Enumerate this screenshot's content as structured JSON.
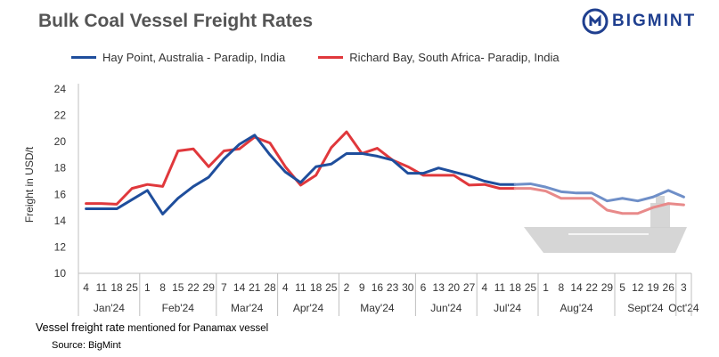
{
  "header": {
    "title": "Bulk Coal Vessel Freight Rates",
    "logo_text": "BIGMINT"
  },
  "footer": {
    "note_main": "Vessel freight rate",
    "note_small": " mentioned for Panamax vessel",
    "source": "Source: BigMint"
  },
  "colors": {
    "hay_point": "#1f4e9c",
    "richard_bay": "#e0383c",
    "hay_point_faded": "#6f8fc8",
    "richard_bay_faded": "#e88a8a",
    "ship": "#cfcfcf"
  },
  "icons": [
    "bigmint-logo-icon",
    "cargo-ship-watermark"
  ],
  "chart_data": {
    "type": "line",
    "title": "Bulk Coal Vessel Freight Rates",
    "ylabel": "Freight  in USD/t",
    "xlabel": "",
    "ylim": [
      10,
      24
    ],
    "yticks": [
      10,
      12,
      14,
      16,
      18,
      20,
      22,
      24
    ],
    "grid": false,
    "legend_position": "top",
    "x": [
      "4",
      "11",
      "18",
      "25",
      "1",
      "8",
      "15",
      "22",
      "29",
      "7",
      "14",
      "21",
      "28",
      "4",
      "11",
      "18",
      "25",
      "2",
      "9",
      "16",
      "23",
      "30",
      "6",
      "13",
      "20",
      "27",
      "4",
      "11",
      "18",
      "25",
      "1",
      "8",
      "14",
      "22",
      "29",
      "5",
      "12",
      "19",
      "26",
      "3"
    ],
    "month_groups": [
      {
        "label": "Jan'24",
        "count": 4
      },
      {
        "label": "Feb'24",
        "count": 5
      },
      {
        "label": "Mar'24",
        "count": 4
      },
      {
        "label": "Apr'24",
        "count": 4
      },
      {
        "label": "May'24",
        "count": 5
      },
      {
        "label": "Jun'24",
        "count": 4
      },
      {
        "label": "Jul'24",
        "count": 4
      },
      {
        "label": "Aug'24",
        "count": 5
      },
      {
        "label": "Sept'24",
        "count": 4
      },
      {
        "label": "Oct'24",
        "count": 1
      }
    ],
    "series": [
      {
        "name": "Hay Point, Australia - Paradip, India",
        "values": [
          14.9,
          14.9,
          14.9,
          15.6,
          16.3,
          14.5,
          15.7,
          16.6,
          17.3,
          18.7,
          19.8,
          20.5,
          19.0,
          17.7,
          16.9,
          18.1,
          18.3,
          19.1,
          19.1,
          18.9,
          18.6,
          17.6,
          17.6,
          18.0,
          17.7,
          17.4,
          17.0,
          16.75,
          16.75,
          16.8,
          16.55,
          16.2,
          16.1,
          16.1,
          15.5,
          15.7,
          15.5,
          15.8,
          16.3,
          15.8
        ]
      },
      {
        "name": "Richard Bay, South Africa- Paradip, India",
        "values": [
          15.3,
          15.3,
          15.25,
          16.45,
          16.75,
          16.6,
          19.3,
          19.45,
          18.1,
          19.3,
          19.45,
          20.35,
          19.9,
          18.1,
          16.7,
          17.45,
          19.55,
          20.75,
          19.1,
          19.5,
          18.6,
          18.1,
          17.45,
          17.45,
          17.45,
          16.7,
          16.75,
          16.45,
          16.45,
          16.45,
          16.25,
          15.7,
          15.7,
          15.7,
          14.8,
          14.55,
          14.55,
          15.0,
          15.3,
          15.2
        ]
      }
    ]
  }
}
